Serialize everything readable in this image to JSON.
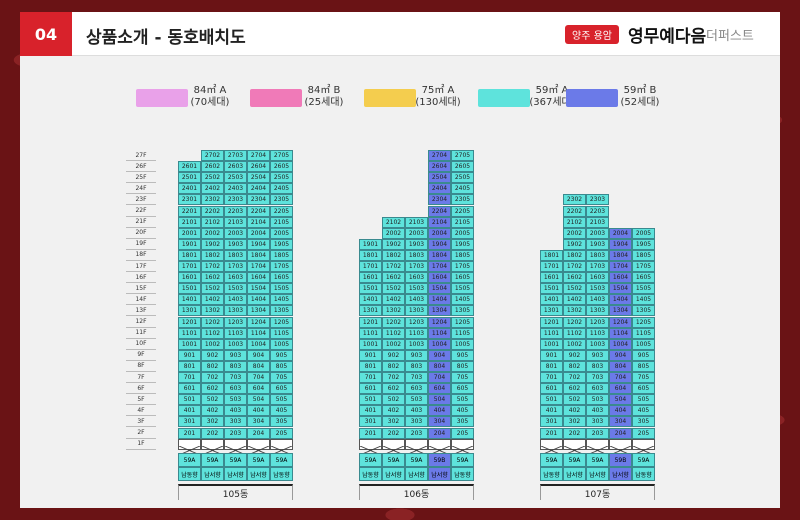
{
  "header": {
    "section_number": "04",
    "section_title": "상품소개 - 동호배치도",
    "brand_tag": "양주 용암",
    "brand_name": "영무예다음",
    "brand_sub": "더퍼스트"
  },
  "legend": [
    {
      "type": "84㎡ A",
      "count": "(70세대)",
      "color": "#e9a1e9"
    },
    {
      "type": "84㎡ B",
      "count": "(25세대)",
      "color": "#f07ab8"
    },
    {
      "type": "75㎡ A",
      "count": "(130세대)",
      "color": "#f4cd4e"
    },
    {
      "type": "59㎡ A",
      "count": "(367세대)",
      "color": "#5ee3dc"
    },
    {
      "type": "59㎡ B",
      "count": "(52세대)",
      "color": "#6b7ae8"
    }
  ],
  "colors": {
    "teal": "#5ee3dc",
    "purple": "#6b7ae8",
    "accent_red": "#d8222b"
  },
  "floors": [
    "27F",
    "26F",
    "25F",
    "24F",
    "23F",
    "22F",
    "21F",
    "20F",
    "19F",
    "18F",
    "17F",
    "16F",
    "15F",
    "14F",
    "13F",
    "12F",
    "11F",
    "10F",
    "9F",
    "8F",
    "7F",
    "6F",
    "5F",
    "4F",
    "3F",
    "2F",
    "1F"
  ],
  "buildings": [
    {
      "name": "105동",
      "top_floors": [
        26,
        27,
        27,
        27,
        27
      ],
      "types": [
        "59A",
        "59A",
        "59A",
        "59A",
        "59A"
      ],
      "directions": [
        "남동향",
        "남서향",
        "남서향",
        "남서향",
        "남동향"
      ],
      "highlight_col": -1
    },
    {
      "name": "106동",
      "top_floors": [
        19,
        21,
        21,
        27,
        27
      ],
      "types": [
        "59A",
        "59A",
        "59A",
        "59B",
        "59A"
      ],
      "directions": [
        "남동향",
        "남서향",
        "남서향",
        "남서향",
        "남동향"
      ],
      "highlight_col": 3
    },
    {
      "name": "107동",
      "top_floors": [
        18,
        23,
        23,
        20,
        20
      ],
      "types": [
        "59A",
        "59A",
        "59A",
        "59B",
        "59A"
      ],
      "directions": [
        "남동향",
        "남서향",
        "남서향",
        "남서향",
        "남동향"
      ],
      "highlight_col": 3
    }
  ]
}
